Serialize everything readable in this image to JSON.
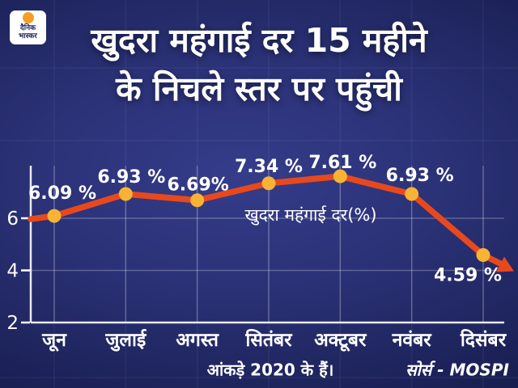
{
  "brand": {
    "logo_line1": "दैनिक",
    "logo_line2": "भास्कर",
    "accent_color": "#f59e27"
  },
  "title": {
    "line1": "खुदरा महंगाई दर 15 महीने",
    "line2": "के निचले स्तर पर पहुंची"
  },
  "chart_data": {
    "type": "line",
    "title": "खुदरा महंगाई दर 15 महीने के निचले स्तर पर पहुंची",
    "legend": "खुदरा महंगाई दर(%)",
    "legend_position": "center-right of plot",
    "categories": [
      "जून",
      "जुलाई",
      "अगस्त",
      "सितंबर",
      "अक्टूबर",
      "नवंबर",
      "दिसंबर"
    ],
    "values": [
      6.09,
      6.93,
      6.69,
      7.34,
      7.61,
      6.93,
      4.59
    ],
    "value_labels": [
      "6.09 %",
      "6.93 %",
      "6.69%",
      "7.34 %",
      "7.61 %",
      "6.93 %",
      "4.59 %"
    ],
    "xlabel": "",
    "ylabel": "",
    "y_ticks": [
      2,
      4,
      6
    ],
    "ylim": [
      2,
      8
    ],
    "grid": true,
    "line_color": "#e8491c",
    "marker_color": "#f9b334",
    "axis_color": "#ffffff",
    "label_color": "#ffffff",
    "ends_with_arrow": true
  },
  "footer": {
    "note": "आंकड़े 2020 के हैं।",
    "source": "सोर्स - MOSPI"
  }
}
